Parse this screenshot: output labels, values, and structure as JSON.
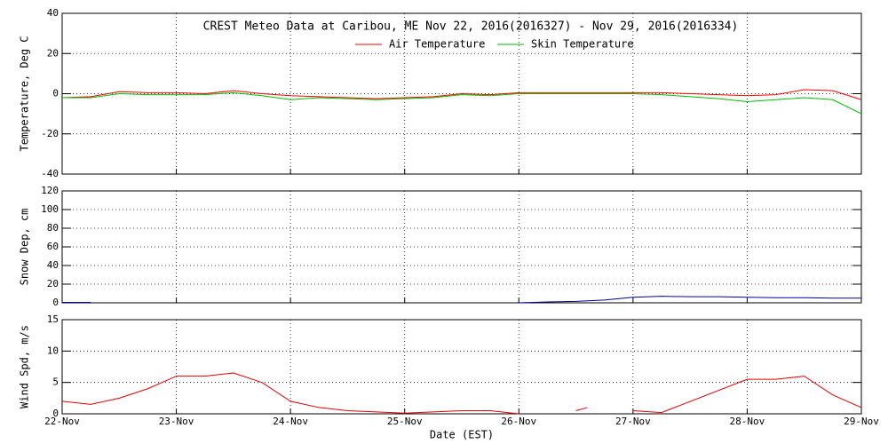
{
  "chart_data": [
    {
      "type": "line",
      "title": "CREST Meteo Data at Caribou, ME   Nov 22, 2016(2016327) - Nov 29, 2016(2016334)",
      "y_label": "Temperature, Deg C",
      "x": [
        0,
        0.25,
        0.5,
        0.75,
        1,
        1.25,
        1.5,
        1.75,
        2,
        2.25,
        2.5,
        2.75,
        3,
        3.25,
        3.5,
        3.75,
        4,
        4.25,
        4.5,
        4.75,
        5,
        5.25,
        5.5,
        5.75,
        6,
        6.25,
        6.5,
        6.75,
        7
      ],
      "series": [
        {
          "name": "Air Temperature",
          "color": "#ff0000",
          "values": [
            -2,
            -1.5,
            1,
            0.5,
            0.5,
            0,
            1.5,
            0,
            -1,
            -1.5,
            -2,
            -2.5,
            -2,
            -1.5,
            0,
            -0.5,
            0.5,
            0.5,
            0.5,
            0.5,
            0.5,
            0.5,
            0,
            -0.5,
            -1,
            -0.5,
            2,
            1.5,
            -3
          ]
        },
        {
          "name": "Skin Temperature",
          "color": "#00c000",
          "values": [
            -2,
            -2,
            0,
            -0.5,
            -0.5,
            -0.5,
            0.5,
            -1,
            -3,
            -2,
            -2.5,
            -3,
            -2.5,
            -2,
            -0.5,
            -1,
            0,
            0,
            0,
            0,
            0,
            -0.5,
            -1.5,
            -2.5,
            -4,
            -3,
            -2,
            -3,
            -10
          ]
        }
      ],
      "xlim": [
        0,
        7
      ],
      "ylim": [
        -40,
        40
      ],
      "yticks": [
        -40,
        -20,
        0,
        20,
        40
      ],
      "grid": true
    },
    {
      "type": "line",
      "y_label": "Snow Dep, cm",
      "x": [
        0,
        0.25,
        0.5,
        3.75,
        4,
        4.25,
        4.5,
        4.75,
        5,
        5.25,
        5.5,
        5.75,
        6,
        6.25,
        6.5,
        6.75,
        7
      ],
      "series": [
        {
          "name": "Snow Depth",
          "color": "#0000a0",
          "values": [
            0.5,
            0.5,
            null,
            null,
            0,
            1,
            1.5,
            3,
            6,
            7,
            6.5,
            6.5,
            6,
            5.5,
            5.5,
            5,
            5
          ]
        }
      ],
      "xlim": [
        0,
        7
      ],
      "ylim": [
        0,
        120
      ],
      "yticks": [
        0,
        20,
        40,
        60,
        80,
        100,
        120
      ],
      "grid": true
    },
    {
      "type": "line",
      "y_label": "Wind Spd, m/s",
      "x_label": "Date (EST)",
      "x": [
        0,
        0.25,
        0.5,
        0.75,
        1,
        1.25,
        1.5,
        1.75,
        2,
        2.25,
        2.5,
        2.75,
        3,
        3.25,
        3.5,
        3.75,
        4,
        4.25,
        4.5,
        4.6,
        4.75,
        5,
        5.25,
        6,
        6.25,
        6.5,
        6.75,
        7
      ],
      "series": [
        {
          "name": "Wind Speed",
          "color": "#e00000",
          "values": [
            2,
            1.5,
            2.5,
            4,
            6,
            6,
            6.5,
            5,
            2,
            1,
            0.5,
            0.3,
            0.1,
            0.3,
            0.5,
            0.5,
            0,
            null,
            0.5,
            1,
            null,
            0.5,
            0.2,
            5.5,
            5.5,
            6,
            3,
            1
          ]
        }
      ],
      "xlim": [
        0,
        7
      ],
      "ylim": [
        0,
        15
      ],
      "yticks": [
        0,
        5,
        10,
        15
      ],
      "xticks": [
        {
          "value": 0,
          "label": "22-Nov"
        },
        {
          "value": 1,
          "label": "23-Nov"
        },
        {
          "value": 2,
          "label": "24-Nov"
        },
        {
          "value": 3,
          "label": "25-Nov"
        },
        {
          "value": 4,
          "label": "26-Nov"
        },
        {
          "value": 5,
          "label": "27-Nov"
        },
        {
          "value": 6,
          "label": "28-Nov"
        },
        {
          "value": 7,
          "label": "29-Nov"
        }
      ],
      "grid": true
    }
  ]
}
